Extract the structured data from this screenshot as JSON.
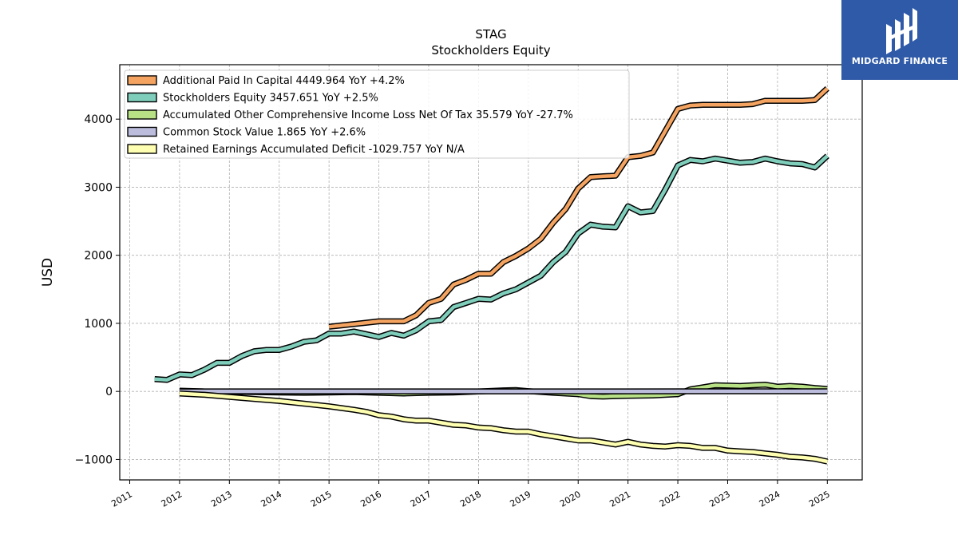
{
  "chart_data": {
    "type": "line",
    "title": "STAG",
    "subtitle": "Stockholders  Equity",
    "xlabel": "",
    "ylabel": "USD",
    "xlim": [
      2010.8,
      2025.7
    ],
    "ylim": [
      -1300,
      4800
    ],
    "x_ticks": [
      "2011",
      "2012",
      "2013",
      "2014",
      "2015",
      "2016",
      "2017",
      "2018",
      "2019",
      "2020",
      "2021",
      "2022",
      "2023",
      "2024",
      "2025"
    ],
    "y_ticks": [
      -1000,
      0,
      1000,
      2000,
      3000,
      4000
    ],
    "y_tick_labels": [
      "−1000",
      "0",
      "1000",
      "2000",
      "3000",
      "4000"
    ],
    "grid": true,
    "legend_position": "top-left",
    "series": [
      {
        "name": "Additional Paid In Capital  4449.964 YoY +4.2%",
        "color": "#f4a460",
        "points": [
          [
            2015.0,
            950
          ],
          [
            2015.25,
            970
          ],
          [
            2015.5,
            990
          ],
          [
            2015.75,
            1010
          ],
          [
            2016.0,
            1030
          ],
          [
            2016.25,
            1030
          ],
          [
            2016.5,
            1030
          ],
          [
            2016.75,
            1120
          ],
          [
            2017.0,
            1300
          ],
          [
            2017.25,
            1360
          ],
          [
            2017.5,
            1570
          ],
          [
            2017.75,
            1640
          ],
          [
            2018.0,
            1730
          ],
          [
            2018.25,
            1730
          ],
          [
            2018.5,
            1900
          ],
          [
            2018.75,
            1990
          ],
          [
            2019.0,
            2100
          ],
          [
            2019.25,
            2240
          ],
          [
            2019.5,
            2480
          ],
          [
            2019.75,
            2680
          ],
          [
            2020.0,
            2980
          ],
          [
            2020.25,
            3150
          ],
          [
            2020.5,
            3160
          ],
          [
            2020.75,
            3170
          ],
          [
            2021.0,
            3440
          ],
          [
            2021.25,
            3460
          ],
          [
            2021.5,
            3510
          ],
          [
            2021.75,
            3830
          ],
          [
            2022.0,
            4150
          ],
          [
            2022.25,
            4200
          ],
          [
            2022.5,
            4210
          ],
          [
            2022.75,
            4210
          ],
          [
            2023.0,
            4210
          ],
          [
            2023.25,
            4210
          ],
          [
            2023.5,
            4220
          ],
          [
            2023.75,
            4270
          ],
          [
            2024.0,
            4270
          ],
          [
            2024.25,
            4270
          ],
          [
            2024.5,
            4270
          ],
          [
            2024.75,
            4280
          ],
          [
            2025.0,
            4450
          ]
        ]
      },
      {
        "name": "Stockholders Equity  3457.651 YoY +2.5%",
        "color": "#7fcdbb",
        "points": [
          [
            2011.5,
            180
          ],
          [
            2011.75,
            170
          ],
          [
            2012.0,
            250
          ],
          [
            2012.25,
            240
          ],
          [
            2012.5,
            320
          ],
          [
            2012.75,
            420
          ],
          [
            2013.0,
            420
          ],
          [
            2013.25,
            520
          ],
          [
            2013.5,
            590
          ],
          [
            2013.75,
            610
          ],
          [
            2014.0,
            610
          ],
          [
            2014.25,
            660
          ],
          [
            2014.5,
            730
          ],
          [
            2014.75,
            750
          ],
          [
            2015.0,
            850
          ],
          [
            2015.25,
            850
          ],
          [
            2015.5,
            880
          ],
          [
            2015.75,
            840
          ],
          [
            2016.0,
            800
          ],
          [
            2016.25,
            860
          ],
          [
            2016.5,
            820
          ],
          [
            2016.75,
            900
          ],
          [
            2017.0,
            1030
          ],
          [
            2017.25,
            1050
          ],
          [
            2017.5,
            1240
          ],
          [
            2017.75,
            1300
          ],
          [
            2018.0,
            1360
          ],
          [
            2018.25,
            1350
          ],
          [
            2018.5,
            1440
          ],
          [
            2018.75,
            1500
          ],
          [
            2019.0,
            1600
          ],
          [
            2019.25,
            1700
          ],
          [
            2019.5,
            1900
          ],
          [
            2019.75,
            2050
          ],
          [
            2020.0,
            2320
          ],
          [
            2020.25,
            2450
          ],
          [
            2020.5,
            2420
          ],
          [
            2020.75,
            2410
          ],
          [
            2021.0,
            2720
          ],
          [
            2021.25,
            2630
          ],
          [
            2021.5,
            2650
          ],
          [
            2021.75,
            2970
          ],
          [
            2022.0,
            3320
          ],
          [
            2022.25,
            3400
          ],
          [
            2022.5,
            3380
          ],
          [
            2022.75,
            3420
          ],
          [
            2023.0,
            3390
          ],
          [
            2023.25,
            3360
          ],
          [
            2023.5,
            3370
          ],
          [
            2023.75,
            3420
          ],
          [
            2024.0,
            3380
          ],
          [
            2024.25,
            3350
          ],
          [
            2024.5,
            3340
          ],
          [
            2024.75,
            3290
          ],
          [
            2025.0,
            3460
          ]
        ]
      },
      {
        "name": "Accumulated Other Comprehensive Income Loss Net Of Tax  35.579 YoY -27.7%",
        "color": "#b8e186",
        "points": [
          [
            2012.0,
            10
          ],
          [
            2012.5,
            0
          ],
          [
            2013.0,
            -5
          ],
          [
            2013.5,
            -10
          ],
          [
            2014.0,
            -15
          ],
          [
            2014.5,
            -20
          ],
          [
            2015.0,
            -15
          ],
          [
            2015.5,
            -10
          ],
          [
            2016.0,
            -20
          ],
          [
            2016.5,
            -30
          ],
          [
            2017.0,
            -20
          ],
          [
            2017.5,
            -15
          ],
          [
            2018.0,
            0
          ],
          [
            2018.5,
            15
          ],
          [
            2018.75,
            20
          ],
          [
            2019.0,
            5
          ],
          [
            2019.5,
            -20
          ],
          [
            2019.75,
            -30
          ],
          [
            2020.0,
            -40
          ],
          [
            2020.25,
            -70
          ],
          [
            2020.5,
            -75
          ],
          [
            2020.75,
            -70
          ],
          [
            2021.0,
            -65
          ],
          [
            2021.5,
            -60
          ],
          [
            2022.0,
            -40
          ],
          [
            2022.25,
            30
          ],
          [
            2022.5,
            60
          ],
          [
            2022.75,
            90
          ],
          [
            2023.0,
            85
          ],
          [
            2023.25,
            80
          ],
          [
            2023.5,
            90
          ],
          [
            2023.75,
            100
          ],
          [
            2024.0,
            70
          ],
          [
            2024.25,
            80
          ],
          [
            2024.5,
            70
          ],
          [
            2024.75,
            50
          ],
          [
            2025.0,
            36
          ]
        ]
      },
      {
        "name": "Common Stock Value  1.865 YoY +2.6%",
        "color": "#bcbddc",
        "points": [
          [
            2012.0,
            0.5
          ],
          [
            2015.0,
            0.7
          ],
          [
            2018.0,
            1.1
          ],
          [
            2021.0,
            1.5
          ],
          [
            2024.0,
            1.8
          ],
          [
            2025.0,
            1.865
          ]
        ]
      },
      {
        "name": "Retained Earnings Accumulated Deficit  -1029.757 YoY N/A",
        "color": "#ffffb2",
        "points": [
          [
            2012.0,
            -30
          ],
          [
            2012.5,
            -50
          ],
          [
            2013.0,
            -80
          ],
          [
            2013.5,
            -110
          ],
          [
            2014.0,
            -140
          ],
          [
            2014.5,
            -180
          ],
          [
            2015.0,
            -220
          ],
          [
            2015.5,
            -270
          ],
          [
            2015.75,
            -300
          ],
          [
            2016.0,
            -350
          ],
          [
            2016.25,
            -370
          ],
          [
            2016.5,
            -410
          ],
          [
            2016.75,
            -430
          ],
          [
            2017.0,
            -430
          ],
          [
            2017.25,
            -460
          ],
          [
            2017.5,
            -490
          ],
          [
            2017.75,
            -500
          ],
          [
            2018.0,
            -530
          ],
          [
            2018.25,
            -540
          ],
          [
            2018.5,
            -570
          ],
          [
            2018.75,
            -590
          ],
          [
            2019.0,
            -590
          ],
          [
            2019.25,
            -630
          ],
          [
            2019.5,
            -660
          ],
          [
            2019.75,
            -690
          ],
          [
            2020.0,
            -720
          ],
          [
            2020.25,
            -720
          ],
          [
            2020.5,
            -750
          ],
          [
            2020.75,
            -780
          ],
          [
            2021.0,
            -740
          ],
          [
            2021.25,
            -780
          ],
          [
            2021.5,
            -800
          ],
          [
            2021.75,
            -810
          ],
          [
            2022.0,
            -790
          ],
          [
            2022.25,
            -800
          ],
          [
            2022.5,
            -830
          ],
          [
            2022.75,
            -830
          ],
          [
            2023.0,
            -870
          ],
          [
            2023.25,
            -880
          ],
          [
            2023.5,
            -890
          ],
          [
            2023.75,
            -910
          ],
          [
            2024.0,
            -930
          ],
          [
            2024.25,
            -960
          ],
          [
            2024.5,
            -970
          ],
          [
            2024.75,
            -990
          ],
          [
            2025.0,
            -1030
          ]
        ]
      }
    ]
  },
  "logo": {
    "text": "MIDGARD FINANCE",
    "background_color": "#2f5aa8"
  }
}
